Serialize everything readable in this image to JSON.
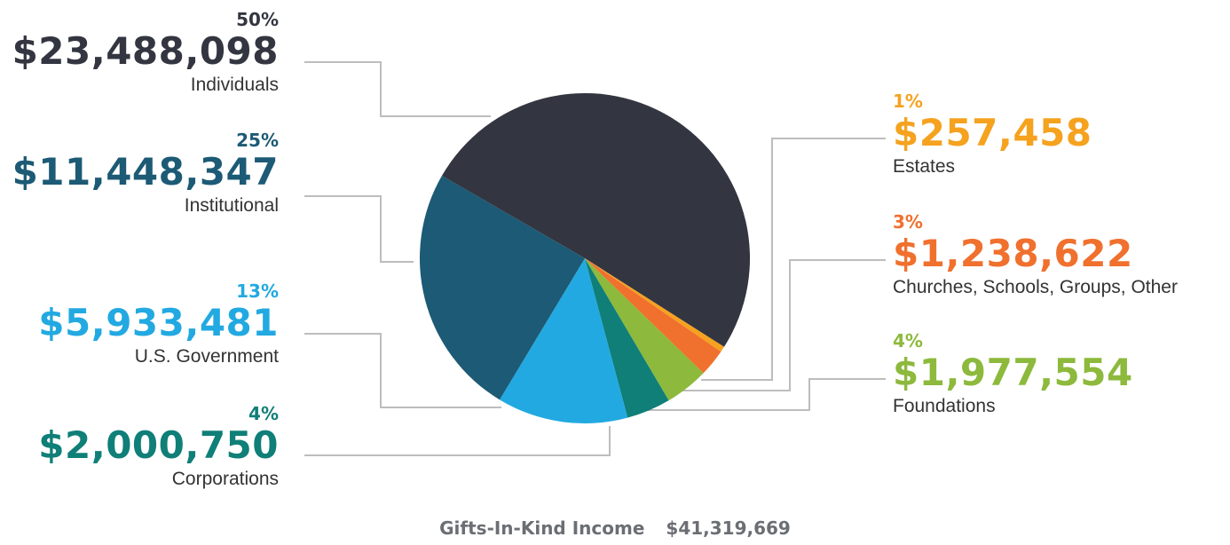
{
  "chart_data": {
    "type": "pie",
    "title": "",
    "slices": [
      {
        "label": "Individuals",
        "value": 23488098,
        "amount": "$23,488,098",
        "percent": "50%",
        "color": "#333640"
      },
      {
        "label": "Estates",
        "value": 257458,
        "amount": "$257,458",
        "percent": "1%",
        "color": "#f5a21f"
      },
      {
        "label": "Churches, Schools, Groups, Other",
        "value": 1238622,
        "amount": "$1,238,622",
        "percent": "3%",
        "color": "#f0702e"
      },
      {
        "label": "Foundations",
        "value": 1977554,
        "amount": "$1,977,554",
        "percent": "4%",
        "color": "#8db93c"
      },
      {
        "label": "Corporations",
        "value": 2000750,
        "amount": "$2,000,750",
        "percent": "4%",
        "color": "#0f7f78"
      },
      {
        "label": "U.S. Government",
        "value": 5933481,
        "amount": "$5,933,481",
        "percent": "13%",
        "color": "#22a9e1"
      },
      {
        "label": "Institutional",
        "value": 11448347,
        "amount": "$11,448,347",
        "percent": "25%",
        "color": "#1c5a75"
      }
    ],
    "total_label": "Gifts-In-Kind Income",
    "total_amount": "$41,319,669",
    "leader_line_color": "#bdbdbd"
  }
}
